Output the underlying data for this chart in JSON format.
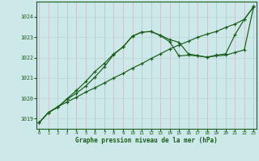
{
  "bg_color": "#cce8e8",
  "grid_color_h": "#b8d4d4",
  "grid_color_v": "#c8b8c8",
  "line_color": "#1a5c1a",
  "ylim": [
    1018.5,
    1024.75
  ],
  "yticks": [
    1019,
    1020,
    1021,
    1022,
    1023,
    1024
  ],
  "xticks": [
    0,
    1,
    2,
    3,
    4,
    5,
    6,
    7,
    8,
    9,
    10,
    11,
    12,
    13,
    14,
    15,
    16,
    17,
    18,
    19,
    20,
    21,
    22,
    23
  ],
  "xlabel": "Graphe pression niveau de la mer (hPa)",
  "line1_y": [
    1018.8,
    1019.3,
    1019.58,
    1019.82,
    1020.05,
    1020.3,
    1020.52,
    1020.75,
    1021.0,
    1021.22,
    1021.48,
    1021.7,
    1021.95,
    1022.18,
    1022.42,
    1022.62,
    1022.8,
    1023.0,
    1023.15,
    1023.28,
    1023.48,
    1023.65,
    1023.88,
    1024.5
  ],
  "line2_y": [
    1018.8,
    1019.3,
    1019.58,
    1019.95,
    1020.25,
    1020.6,
    1021.05,
    1021.55,
    1022.15,
    1022.52,
    1023.05,
    1023.25,
    1023.28,
    1023.08,
    1022.78,
    1022.08,
    1022.12,
    1022.08,
    1022.02,
    1022.12,
    1022.18,
    1023.12,
    1023.88,
    1024.5
  ],
  "line3_y": [
    1018.8,
    1019.3,
    1019.55,
    1019.98,
    1020.38,
    1020.82,
    1021.32,
    1021.72,
    1022.18,
    1022.52,
    1023.05,
    1023.25,
    1023.28,
    1023.1,
    1022.88,
    1022.75,
    1022.18,
    1022.1,
    1022.02,
    1022.08,
    1022.12,
    1022.25,
    1022.38,
    1024.5
  ],
  "xlim": [
    -0.3,
    23.3
  ]
}
